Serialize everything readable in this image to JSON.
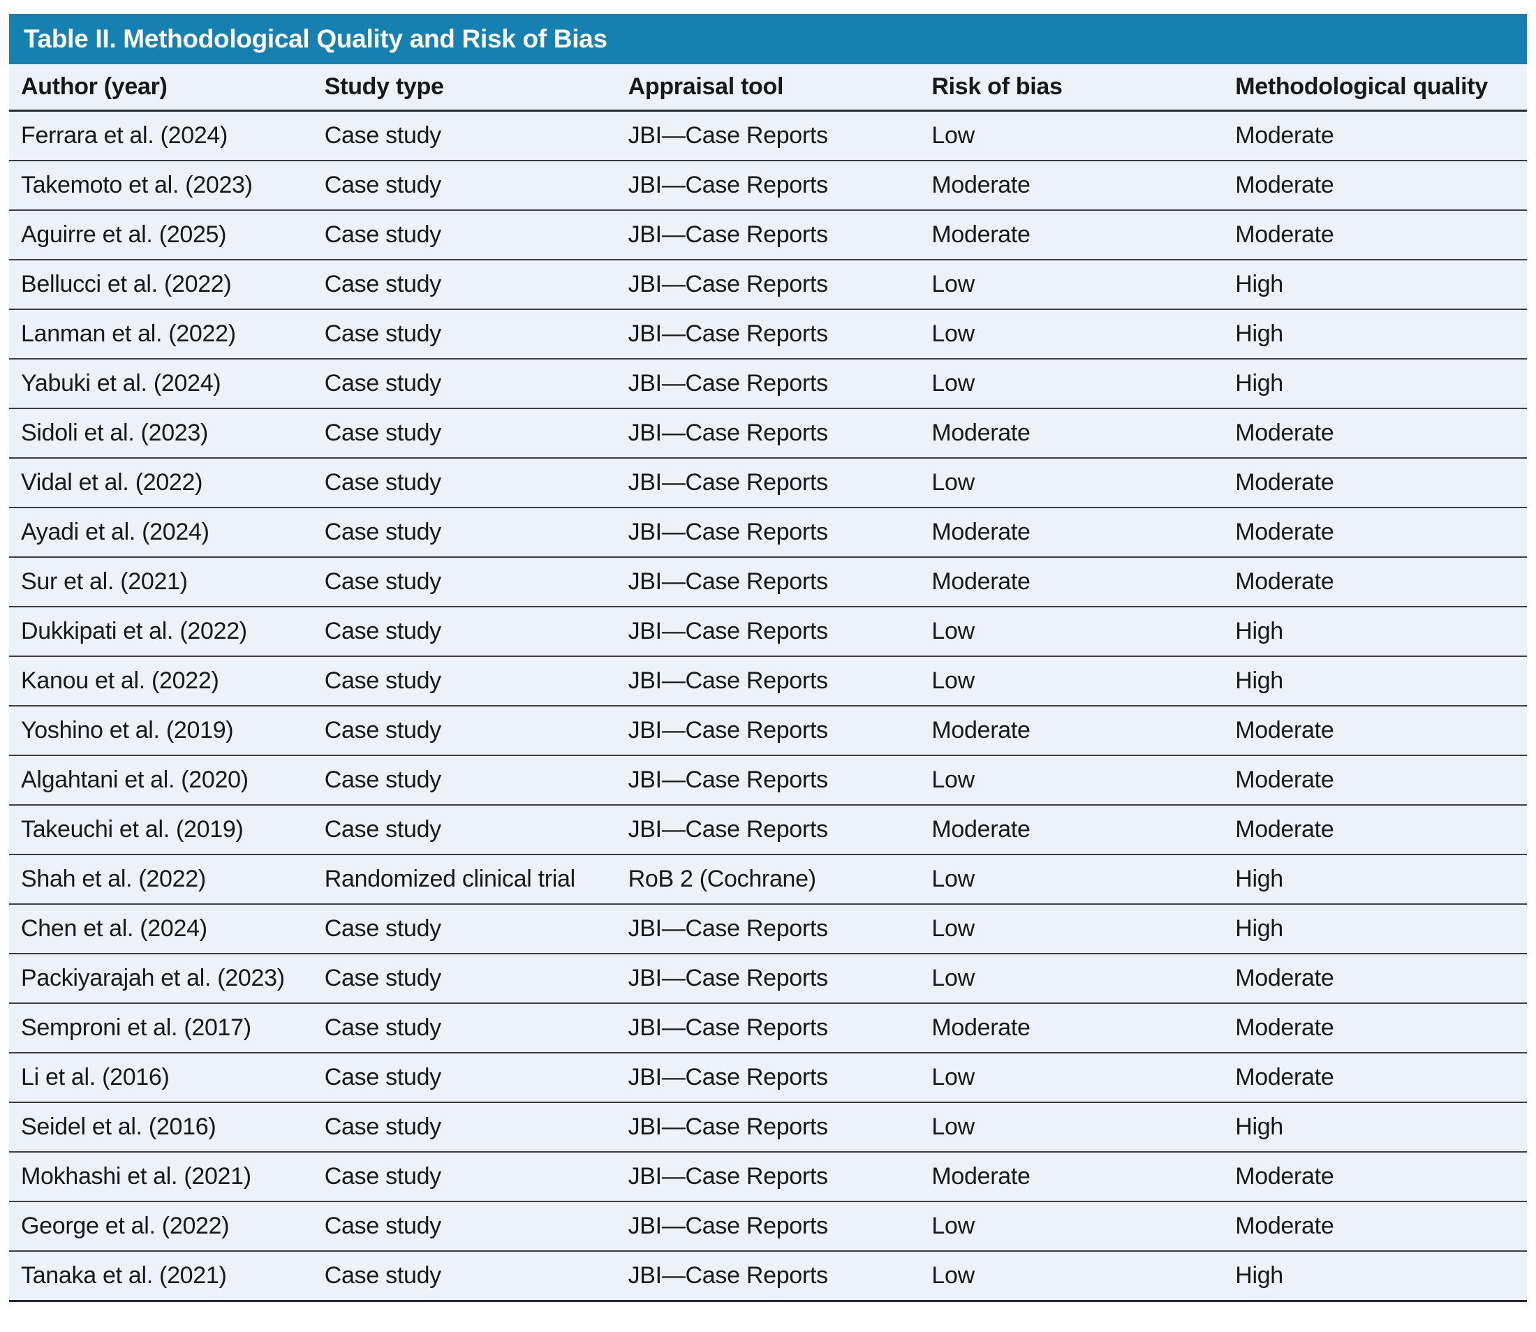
{
  "title": "Table II. Methodological Quality and Risk of Bias",
  "columns": [
    "Author (year)",
    "Study type",
    "Appraisal tool",
    "Risk of bias",
    "Methodological quality"
  ],
  "rows": [
    [
      "Ferrara et al. (2024)",
      "Case study",
      "JBI—Case Reports",
      "Low",
      "Moderate"
    ],
    [
      "Takemoto et al. (2023)",
      "Case study",
      "JBI—Case Reports",
      "Moderate",
      "Moderate"
    ],
    [
      "Aguirre et al. (2025)",
      "Case study",
      "JBI—Case Reports",
      "Moderate",
      "Moderate"
    ],
    [
      "Bellucci et al. (2022)",
      "Case study",
      "JBI—Case Reports",
      "Low",
      "High"
    ],
    [
      "Lanman et al. (2022)",
      "Case study",
      "JBI—Case Reports",
      "Low",
      "High"
    ],
    [
      "Yabuki et al. (2024)",
      "Case study",
      "JBI—Case Reports",
      "Low",
      "High"
    ],
    [
      "Sidoli et al. (2023)",
      "Case study",
      "JBI—Case Reports",
      "Moderate",
      "Moderate"
    ],
    [
      "Vidal et al. (2022)",
      "Case study",
      "JBI—Case Reports",
      "Low",
      "Moderate"
    ],
    [
      "Ayadi et al. (2024)",
      "Case study",
      "JBI—Case Reports",
      "Moderate",
      "Moderate"
    ],
    [
      "Sur et al. (2021)",
      "Case study",
      "JBI—Case Reports",
      "Moderate",
      "Moderate"
    ],
    [
      "Dukkipati et al. (2022)",
      "Case study",
      "JBI—Case Reports",
      "Low",
      "High"
    ],
    [
      "Kanou et al. (2022)",
      "Case study",
      "JBI—Case Reports",
      "Low",
      "High"
    ],
    [
      "Yoshino et al. (2019)",
      "Case study",
      "JBI—Case Reports",
      "Moderate",
      "Moderate"
    ],
    [
      "Algahtani et al. (2020)",
      "Case study",
      "JBI—Case Reports",
      "Low",
      "Moderate"
    ],
    [
      "Takeuchi et al. (2019)",
      "Case study",
      "JBI—Case Reports",
      "Moderate",
      "Moderate"
    ],
    [
      "Shah et al. (2022)",
      "Randomized clinical trial",
      "RoB 2 (Cochrane)",
      "Low",
      "High"
    ],
    [
      "Chen et al. (2024)",
      "Case study",
      "JBI—Case Reports",
      "Low",
      "High"
    ],
    [
      "Packiyarajah et al. (2023)",
      "Case study",
      "JBI—Case Reports",
      "Low",
      "Moderate"
    ],
    [
      "Semproni et al. (2017)",
      "Case study",
      "JBI—Case Reports",
      "Moderate",
      "Moderate"
    ],
    [
      "Li et al. (2016)",
      "Case study",
      "JBI—Case Reports",
      "Low",
      "Moderate"
    ],
    [
      "Seidel et al. (2016)",
      "Case study",
      "JBI—Case Reports",
      "Low",
      "High"
    ],
    [
      "Mokhashi et al. (2021)",
      "Case study",
      "JBI—Case Reports",
      "Moderate",
      "Moderate"
    ],
    [
      "George et al. (2022)",
      "Case study",
      "JBI—Case Reports",
      "Low",
      "Moderate"
    ],
    [
      "Tanaka et al. (2021)",
      "Case study",
      "JBI—Case Reports",
      "Low",
      "High"
    ]
  ],
  "cell_names": [
    "cell-author-year",
    "cell-study-type",
    "cell-appraisal-tool",
    "cell-risk-of-bias",
    "cell-methodological-quality"
  ],
  "colors": {
    "title_bar_bg": "#1681b1",
    "title_text": "#ffffff",
    "row_bg": "#edf1f9",
    "rule_dark": "#26292d",
    "rule_row": "#3a3e44",
    "body_text": "#17181a"
  }
}
